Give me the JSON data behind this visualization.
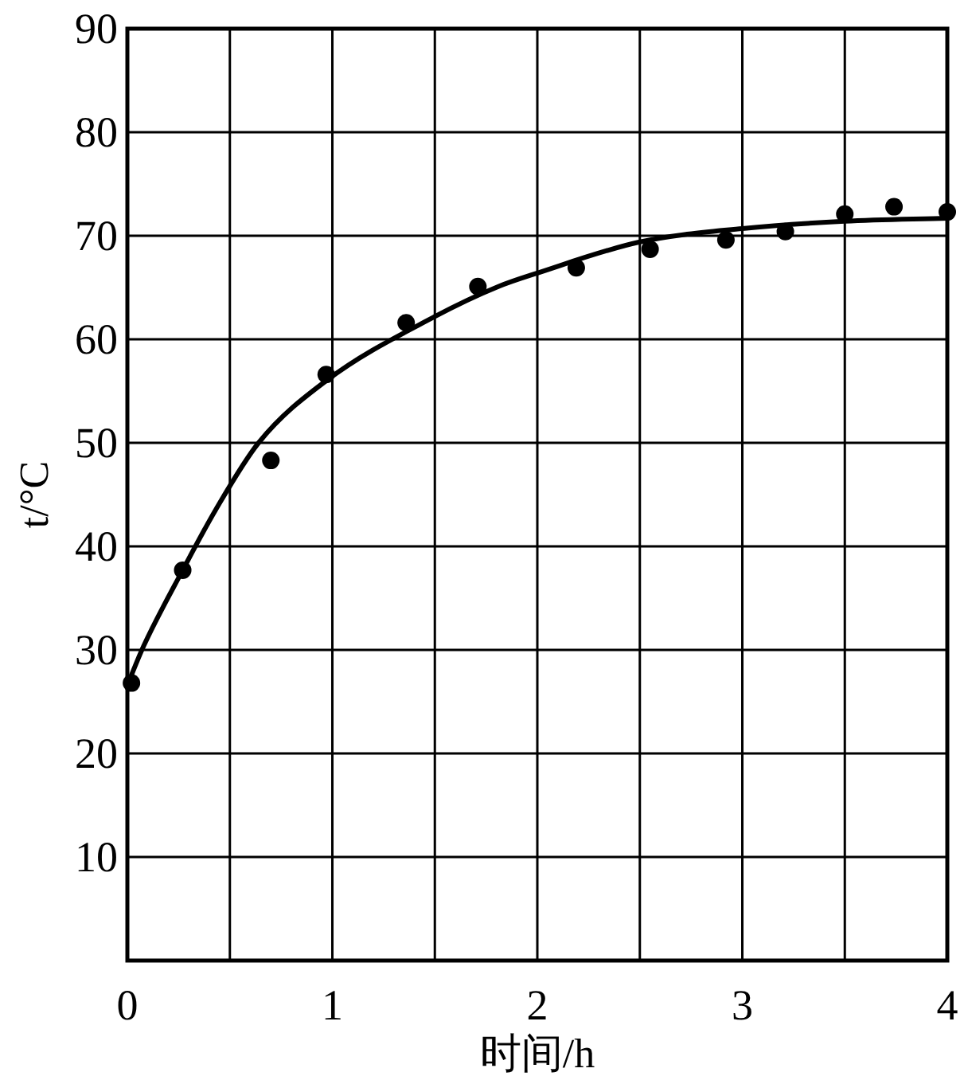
{
  "chart_data": {
    "type": "scatter",
    "xlabel": "时间/h",
    "ylabel": "t/°C",
    "xlim": [
      0,
      4
    ],
    "ylim": [
      0,
      90
    ],
    "xticks": [
      0,
      {
        "value": 0.5,
        "label": null
      },
      1,
      {
        "value": 1.5,
        "label": null
      },
      2,
      {
        "value": 2.5,
        "label": null
      },
      3,
      {
        "value": 3.5,
        "label": null
      },
      4
    ],
    "yticks": [
      {
        "value": 0,
        "label": null
      },
      10,
      20,
      30,
      40,
      50,
      60,
      70,
      80,
      90
    ],
    "grid": true,
    "marker": "circle",
    "series": [
      {
        "color": "#000000",
        "x": [
          0.02,
          0.27,
          0.7,
          0.97,
          1.36,
          1.71,
          2.19,
          2.55,
          2.92,
          3.21,
          3.5,
          3.74,
          4.0
        ],
        "values": [
          26.8,
          37.7,
          48.3,
          56.6,
          61.6,
          65.1,
          66.9,
          68.7,
          69.6,
          70.4,
          72.1,
          72.8,
          72.3
        ]
      },
      {
        "type": "line",
        "color": "#000000",
        "line_style": "solid",
        "marker": "none",
        "x": [
          0,
          0.08,
          0.27,
          0.43,
          0.64,
          0.97,
          1.5,
          1.81,
          2.0,
          2.5,
          3.0,
          3.5,
          4.0
        ],
        "values": [
          26.6,
          30.4,
          37.7,
          43.5,
          50.0,
          56.0,
          62.2,
          65.1,
          66.4,
          69.4,
          70.7,
          71.4,
          71.7
        ]
      }
    ]
  }
}
